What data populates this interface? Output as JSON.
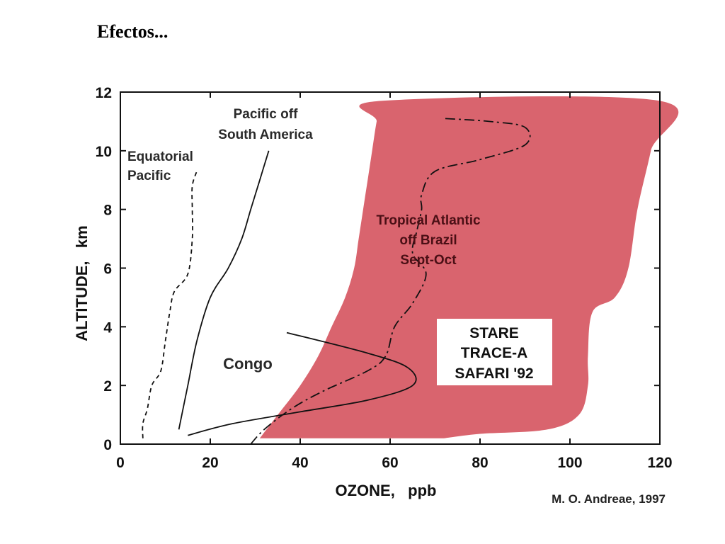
{
  "slide": {
    "title": "Efectos..."
  },
  "credit": "M. O. Andreae, 1997",
  "chart_data": {
    "type": "line",
    "xlabel": "OZONE,   ppb",
    "ylabel": "ALTITUDE,   km",
    "xlim": [
      0,
      120
    ],
    "ylim": [
      0,
      12
    ],
    "x_ticks": [
      0,
      20,
      40,
      60,
      80,
      100,
      120
    ],
    "y_ticks": [
      0,
      2,
      4,
      6,
      8,
      10,
      12
    ],
    "colors": {
      "shade": "#d9646e",
      "line": "#111111"
    },
    "shaded_region": {
      "label_lines": [
        "STARE",
        "TRACE-A",
        "SAFARI '92"
      ],
      "left_edge": [
        [
          31,
          0.2
        ],
        [
          35,
          1
        ],
        [
          40,
          2
        ],
        [
          44,
          3
        ],
        [
          47,
          4
        ],
        [
          50,
          5
        ],
        [
          52,
          6
        ],
        [
          53,
          7
        ],
        [
          54,
          8
        ],
        [
          55,
          9
        ],
        [
          56,
          10
        ],
        [
          57,
          11
        ],
        [
          58,
          11.7
        ]
      ],
      "right_edge": [
        [
          120,
          11.7
        ],
        [
          118,
          10
        ],
        [
          115,
          8
        ],
        [
          113,
          6
        ],
        [
          110,
          5
        ],
        [
          105,
          4.5
        ],
        [
          104,
          3
        ],
        [
          104,
          2
        ],
        [
          102,
          1
        ],
        [
          95,
          0.5
        ],
        [
          80,
          0.35
        ],
        [
          72,
          0.2
        ]
      ]
    },
    "series": [
      {
        "name": "Equatorial Pacific",
        "label_lines": [
          "Equatorial",
          "Pacific"
        ],
        "style": "dashed",
        "points": [
          [
            5,
            0.2
          ],
          [
            5,
            0.7
          ],
          [
            6,
            1.2
          ],
          [
            7,
            2
          ],
          [
            9,
            2.5
          ],
          [
            10,
            3.5
          ],
          [
            11,
            4.5
          ],
          [
            12,
            5.2
          ],
          [
            15,
            5.8
          ],
          [
            16,
            7
          ],
          [
            16,
            8
          ],
          [
            16,
            8.8
          ],
          [
            17,
            9.3
          ]
        ]
      },
      {
        "name": "Pacific off South America",
        "label_lines": [
          "Pacific off",
          "South America"
        ],
        "style": "solid",
        "points": [
          [
            13,
            0.5
          ],
          [
            15,
            2
          ],
          [
            17,
            3.5
          ],
          [
            20,
            5
          ],
          [
            24,
            6
          ],
          [
            27,
            7
          ],
          [
            29,
            8
          ],
          [
            31,
            9
          ],
          [
            33,
            10
          ]
        ]
      },
      {
        "name": "Congo",
        "label_lines": [
          "Congo"
        ],
        "style": "solid",
        "points": [
          [
            15,
            0.3
          ],
          [
            25,
            0.7
          ],
          [
            40,
            1.1
          ],
          [
            55,
            1.5
          ],
          [
            65,
            2
          ],
          [
            64,
            2.6
          ],
          [
            55,
            3.1
          ],
          [
            37,
            3.8
          ]
        ]
      },
      {
        "name": "Tropical Atlantic off Brazil Sept-Oct",
        "label_lines": [
          "Tropical Atlantic",
          "off Brazil",
          "Sept-Oct"
        ],
        "style": "dashdot",
        "points": [
          [
            29,
            0
          ],
          [
            32,
            0.5
          ],
          [
            38,
            1.2
          ],
          [
            45,
            1.8
          ],
          [
            55,
            2.5
          ],
          [
            59,
            3
          ],
          [
            61,
            4
          ],
          [
            65,
            4.8
          ],
          [
            68,
            5.8
          ],
          [
            65,
            6.5
          ],
          [
            66,
            7.3
          ],
          [
            67,
            8
          ],
          [
            67,
            8.5
          ],
          [
            70,
            9.3
          ],
          [
            80,
            9.7
          ],
          [
            90,
            10.2
          ],
          [
            90,
            10.8
          ],
          [
            82,
            11
          ],
          [
            72,
            11.1
          ]
        ]
      }
    ]
  }
}
